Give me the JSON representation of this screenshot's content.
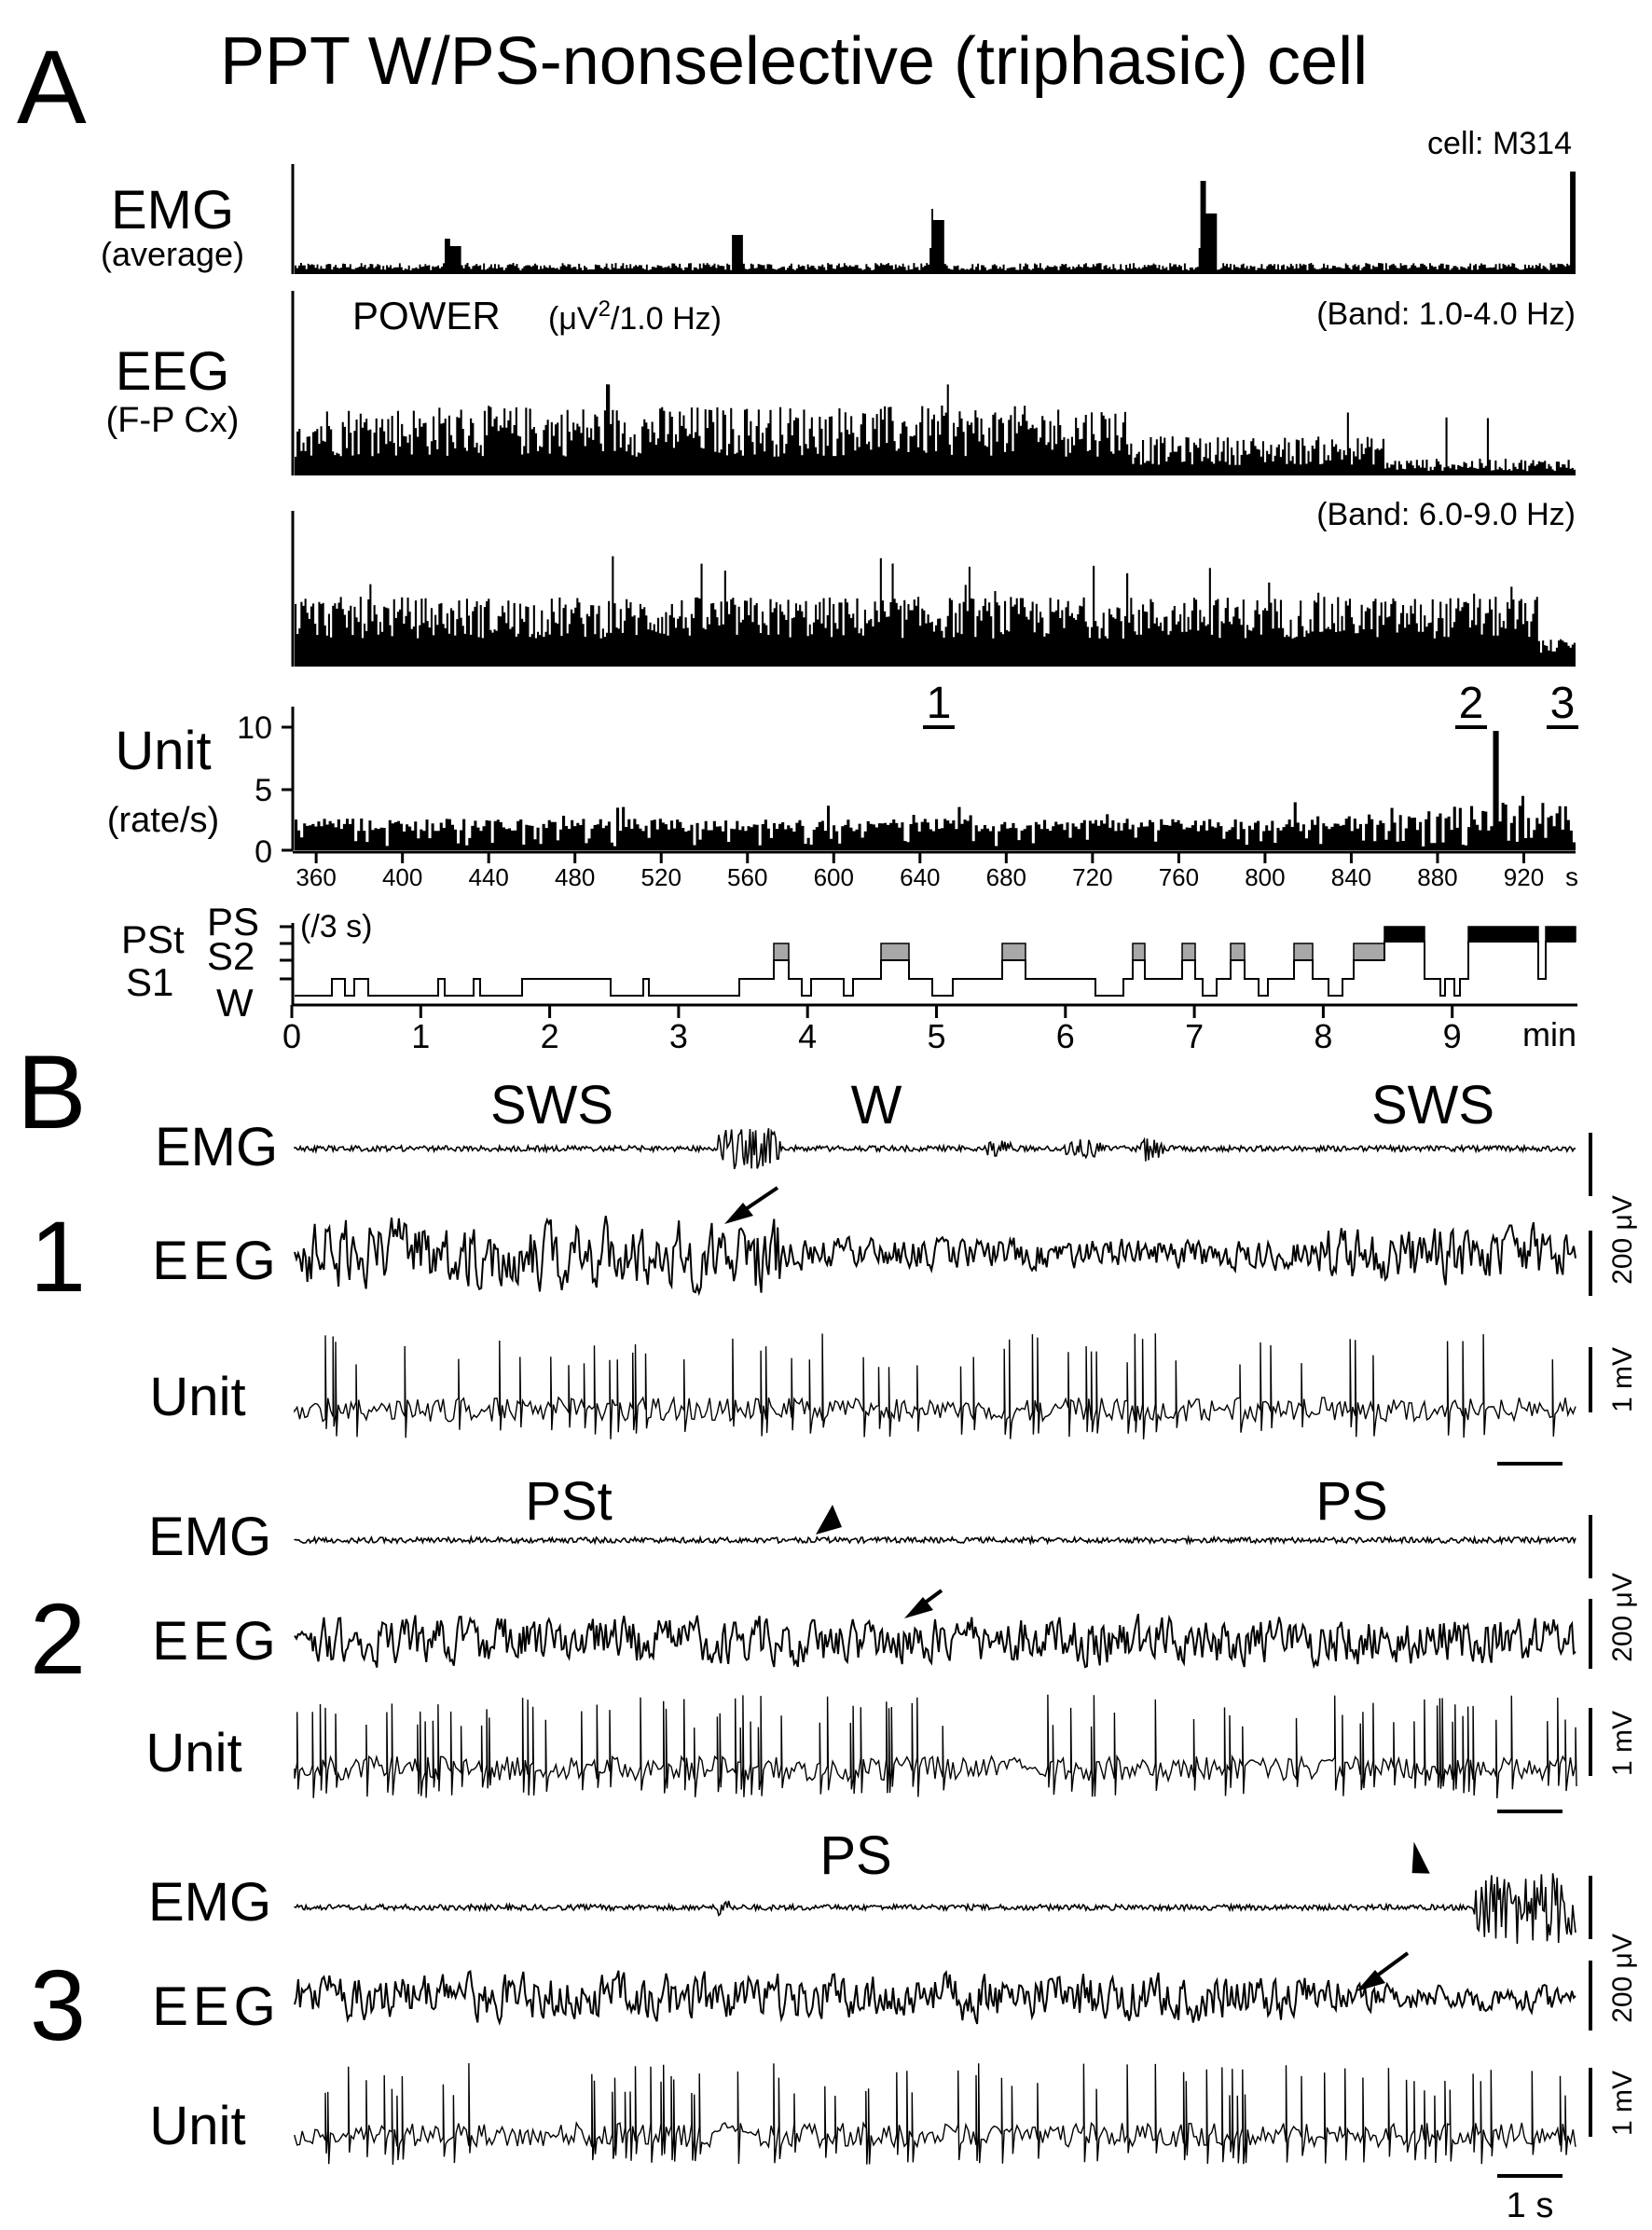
{
  "panel_A": {
    "letter": "A",
    "title": "PPT  W/PS-nonselective (triphasic) cell",
    "cell_label": "cell: M314",
    "emg": {
      "label": "EMG",
      "sublabel": "(average)"
    },
    "eeg": {
      "label": "EEG",
      "sublabel": "(F-P Cx)",
      "power_label": "POWER",
      "power_unit_pre": "(μV",
      "power_unit_sup": "2",
      "power_unit_post": "/1.0 Hz)",
      "band1": "(Band: 1.0-4.0 Hz)",
      "band2": "(Band: 6.0-9.0 Hz)"
    },
    "unit": {
      "label": "Unit",
      "sublabel": "(rate/s)",
      "yticks": [
        "10",
        "5",
        "0"
      ],
      "xticks": [
        "360",
        "400",
        "440",
        "480",
        "520",
        "560",
        "600",
        "640",
        "680",
        "720",
        "760",
        "800",
        "840",
        "880",
        "920"
      ],
      "x_unit": "s",
      "markers": [
        "1",
        "2",
        "3"
      ]
    },
    "hypnogram": {
      "levels": [
        "PS",
        "S2",
        "S1",
        "W"
      ],
      "pst_label": "PSt",
      "bin_label": "(/3 s)",
      "xticks": [
        "0",
        "1",
        "2",
        "3",
        "4",
        "5",
        "6",
        "7",
        "8",
        "9"
      ],
      "x_unit": "min"
    }
  },
  "panel_B": {
    "letter": "B",
    "rows": [
      {
        "number": "1",
        "states": [
          "SWS",
          "W",
          "SWS"
        ]
      },
      {
        "number": "2",
        "states": [
          "PSt",
          "PS"
        ]
      },
      {
        "number": "3",
        "states": [
          "PS"
        ]
      }
    ],
    "trace_labels": {
      "emg": "EMG",
      "eeg": "EEG",
      "unit": "Unit"
    },
    "scale_voltage": "200 μV",
    "scale_unit": "1 mV",
    "scale_time": "1 s"
  },
  "style": {
    "trace_color": "#000000",
    "ps_fill": "#000000",
    "s2_fill": "#a8a8a8"
  }
}
